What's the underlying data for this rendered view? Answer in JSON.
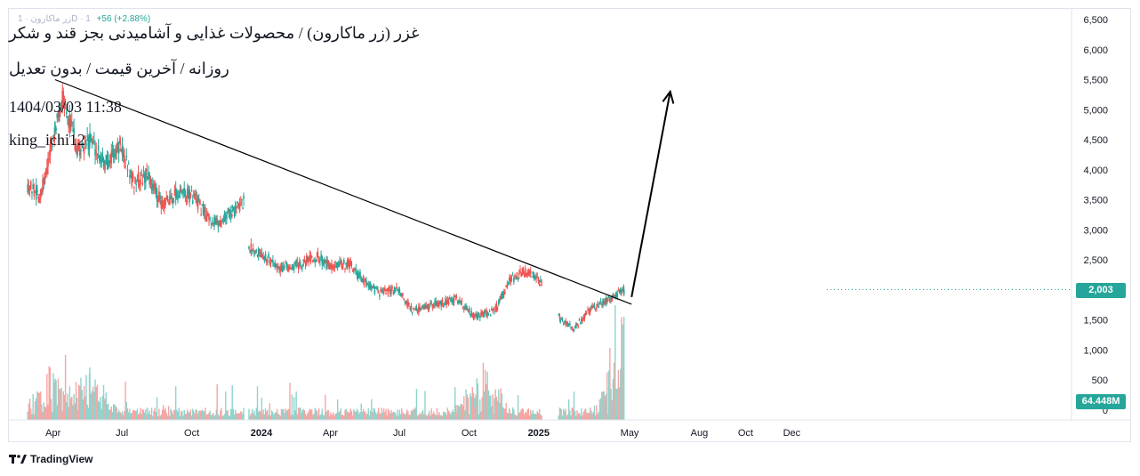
{
  "header": {
    "faint_symbol": "زر ماکارون · 1D · 1",
    "faint_change": "+56 (+2.88%)",
    "title_line": "غزر (زر ماکارون) / محصولات غذایی و آشامیدنی بجز قند و شکر",
    "subtitle_line": "روزانه / آخرین قیمت / بدون تعدیل",
    "timestamp": "1404/03/03 11:38",
    "author": "king_ichi12"
  },
  "price_axis": {
    "labels": [
      "6,500",
      "6,000",
      "5,500",
      "5,000",
      "4,500",
      "4,000",
      "3,500",
      "3,000",
      "2,500",
      "2,000",
      "1,500",
      "1,000",
      "500",
      "0"
    ]
  },
  "time_axis": {
    "labels": [
      {
        "text": "Apr",
        "bold": false
      },
      {
        "text": "Jul",
        "bold": false
      },
      {
        "text": "Oct",
        "bold": false
      },
      {
        "text": "2024",
        "bold": true
      },
      {
        "text": "Apr",
        "bold": false
      },
      {
        "text": "Jul",
        "bold": false
      },
      {
        "text": "Oct",
        "bold": false
      },
      {
        "text": "2025",
        "bold": true
      },
      {
        "text": "May",
        "bold": false
      },
      {
        "text": "Aug",
        "bold": false
      },
      {
        "text": "Oct",
        "bold": false
      },
      {
        "text": "Dec",
        "bold": false
      }
    ]
  },
  "badges": {
    "last_price": "2,003",
    "volume": "64.448M"
  },
  "branding": {
    "logo_text": "TradingView"
  },
  "colors": {
    "up": "#26a69a",
    "down": "#ef5350",
    "volume_up": "#8fd3cc",
    "volume_down": "#f6a5a3",
    "badge_bg": "#26a69a"
  },
  "chart_data": {
    "type": "candlestick",
    "interval": "daily",
    "y_axis": {
      "min": 0,
      "max": 6500,
      "scale": "linear",
      "tick_step": 500
    },
    "x_range": [
      "2023-03",
      "2025-12"
    ],
    "last_price": 2003,
    "last_volume": "64.448M",
    "price_path": [
      {
        "date": "2023-03-15",
        "close": 3750
      },
      {
        "date": "2023-04-01",
        "close": 3550
      },
      {
        "date": "2023-04-20",
        "close": 4650
      },
      {
        "date": "2023-05-01",
        "close": 5200
      },
      {
        "date": "2023-05-20",
        "close": 4300
      },
      {
        "date": "2023-06-05",
        "close": 4500
      },
      {
        "date": "2023-06-25",
        "close": 4100
      },
      {
        "date": "2023-07-15",
        "close": 4400
      },
      {
        "date": "2023-08-01",
        "close": 3800
      },
      {
        "date": "2023-08-20",
        "close": 3900
      },
      {
        "date": "2023-09-10",
        "close": 3400
      },
      {
        "date": "2023-09-25",
        "close": 3600
      },
      {
        "date": "2023-10-20",
        "close": 3550
      },
      {
        "date": "2023-11-05",
        "close": 3250
      },
      {
        "date": "2023-11-20",
        "close": 3100
      },
      {
        "date": "2023-12-10",
        "close": 3300
      },
      {
        "date": "2023-12-25",
        "close": 3450
      },
      {
        "date": "2024-01-01",
        "close": 2700
      },
      {
        "date": "2024-01-20",
        "close": 2600
      },
      {
        "date": "2024-02-10",
        "close": 2350
      },
      {
        "date": "2024-03-10",
        "close": 2450
      },
      {
        "date": "2024-04-01",
        "close": 2550
      },
      {
        "date": "2024-04-20",
        "close": 2350
      },
      {
        "date": "2024-05-10",
        "close": 2450
      },
      {
        "date": "2024-06-01",
        "close": 2150
      },
      {
        "date": "2024-06-20",
        "close": 1950
      },
      {
        "date": "2024-07-15",
        "close": 2000
      },
      {
        "date": "2024-08-05",
        "close": 1650
      },
      {
        "date": "2024-09-01",
        "close": 1750
      },
      {
        "date": "2024-10-01",
        "close": 1850
      },
      {
        "date": "2024-10-25",
        "close": 1550
      },
      {
        "date": "2024-11-20",
        "close": 1650
      },
      {
        "date": "2024-12-10",
        "close": 2150
      },
      {
        "date": "2024-12-28",
        "close": 2300
      },
      {
        "date": "2025-01-10",
        "close": 2250
      },
      {
        "date": "2025-01-20",
        "close": 2100
      },
      {
        "date": "2025-02-15",
        "close": 1500
      },
      {
        "date": "2025-03-05",
        "close": 1350
      },
      {
        "date": "2025-03-25",
        "close": 1650
      },
      {
        "date": "2025-04-20",
        "close": 1850
      },
      {
        "date": "2025-05-10",
        "close": 2003
      }
    ],
    "volume_spikes": [
      {
        "date": "2023-04-15",
        "value": "high"
      },
      {
        "date": "2023-06-05",
        "value": "high"
      },
      {
        "date": "2024-11-05",
        "value": "high"
      },
      {
        "date": "2025-05-10",
        "value": "very-high"
      }
    ],
    "annotations": [
      {
        "type": "trendline",
        "from": {
          "date": "2023-04-20",
          "price": 5500
        },
        "to": {
          "date": "2025-05-20",
          "price": 1760
        }
      },
      {
        "type": "arrow",
        "from": {
          "date": "2025-05-20",
          "price": 1880
        },
        "to": {
          "date": "2025-07-10",
          "price": 5300
        }
      }
    ]
  }
}
